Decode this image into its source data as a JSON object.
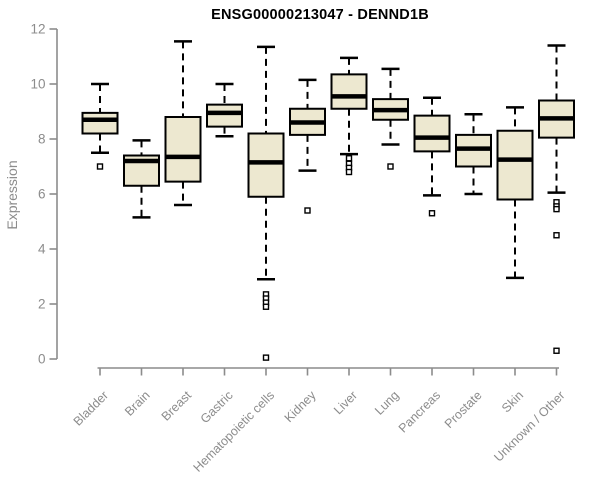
{
  "title": "ENSG00000213047 - DENND1B",
  "colors": {
    "box_fill": "#ede8d0",
    "box_border": "#000000",
    "median": "#000000",
    "whisker": "#000000",
    "outlier_fill": "#ffffff",
    "axis": "#8c8c8c",
    "tick_label": "#8c8c8c",
    "title": "#000000",
    "background": "#ffffff"
  },
  "chart_data": {
    "type": "boxplot",
    "title": "ENSG00000213047 - DENND1B",
    "xlabel": "",
    "ylabel": "Expression",
    "ylim": [
      0,
      12
    ],
    "yticks": [
      0,
      2,
      4,
      6,
      8,
      10,
      12
    ],
    "grid": false,
    "legend": false,
    "categories": [
      "Bladder",
      "Brain",
      "Breast",
      "Gastric",
      "Hematopoietic cells",
      "Kidney",
      "Liver",
      "Lung",
      "Pancreas",
      "Prostate",
      "Skin",
      "Unknown / Other"
    ],
    "boxes": [
      {
        "category": "Bladder",
        "whisker_low": 7.5,
        "q1": 8.2,
        "median": 8.7,
        "q3": 8.95,
        "whisker_high": 10.0,
        "outliers": [
          7.0
        ]
      },
      {
        "category": "Brain",
        "whisker_low": 5.15,
        "q1": 6.3,
        "median": 7.2,
        "q3": 7.4,
        "whisker_high": 7.95,
        "outliers": []
      },
      {
        "category": "Breast",
        "whisker_low": 5.6,
        "q1": 6.45,
        "median": 7.35,
        "q3": 8.8,
        "whisker_high": 11.55,
        "outliers": []
      },
      {
        "category": "Gastric",
        "whisker_low": 8.1,
        "q1": 8.45,
        "median": 8.95,
        "q3": 9.25,
        "whisker_high": 10.0,
        "outliers": []
      },
      {
        "category": "Hematopoietic cells",
        "whisker_low": 2.9,
        "q1": 5.9,
        "median": 7.15,
        "q3": 8.2,
        "whisker_high": 11.35,
        "outliers": [
          2.35,
          2.2,
          2.05,
          1.9,
          0.05
        ]
      },
      {
        "category": "Kidney",
        "whisker_low": 6.85,
        "q1": 8.15,
        "median": 8.6,
        "q3": 9.1,
        "whisker_high": 10.15,
        "outliers": [
          5.4
        ]
      },
      {
        "category": "Liver",
        "whisker_low": 7.45,
        "q1": 9.1,
        "median": 9.55,
        "q3": 10.35,
        "whisker_high": 10.95,
        "outliers": [
          7.3,
          7.1,
          6.95,
          6.8
        ]
      },
      {
        "category": "Lung",
        "whisker_low": 7.8,
        "q1": 8.7,
        "median": 9.05,
        "q3": 9.45,
        "whisker_high": 10.55,
        "outliers": [
          7.0
        ]
      },
      {
        "category": "Pancreas",
        "whisker_low": 5.95,
        "q1": 7.55,
        "median": 8.05,
        "q3": 8.85,
        "whisker_high": 9.5,
        "outliers": [
          5.3
        ]
      },
      {
        "category": "Prostate",
        "whisker_low": 6.0,
        "q1": 7.0,
        "median": 7.65,
        "q3": 8.15,
        "whisker_high": 8.9,
        "outliers": []
      },
      {
        "category": "Skin",
        "whisker_low": 2.95,
        "q1": 5.8,
        "median": 7.25,
        "q3": 8.3,
        "whisker_high": 9.15,
        "outliers": []
      },
      {
        "category": "Unknown / Other",
        "whisker_low": 6.05,
        "q1": 8.05,
        "median": 8.75,
        "q3": 9.4,
        "whisker_high": 11.4,
        "outliers": [
          5.7,
          5.55,
          5.45,
          4.5,
          0.3
        ]
      }
    ]
  }
}
